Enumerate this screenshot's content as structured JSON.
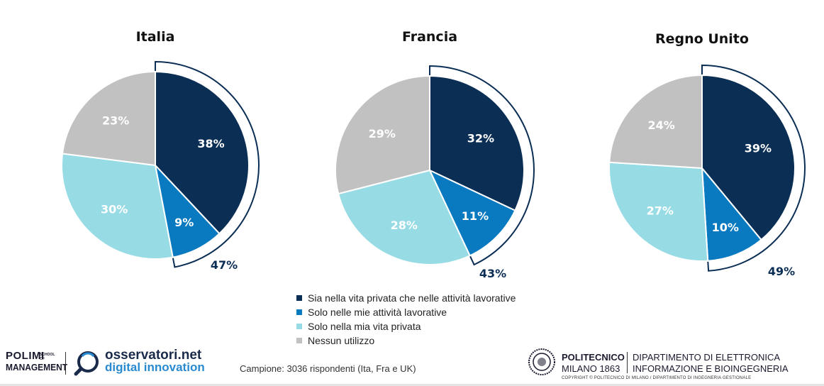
{
  "chart_data": [
    {
      "type": "pie",
      "title": "Italia",
      "slices": [
        {
          "label": "Sia nella vita privata che nelle attività lavorative",
          "value": 38,
          "text": "38%"
        },
        {
          "label": "Solo nelle mie attività lavorative",
          "value": 9,
          "text": "9%"
        },
        {
          "label": "Solo nella mia vita privata",
          "value": 30,
          "text": "30%"
        },
        {
          "label": "Nessun utilizzo",
          "value": 23,
          "text": "23%"
        }
      ],
      "callout": {
        "value": 47,
        "text": "47%"
      }
    },
    {
      "type": "pie",
      "title": "Francia",
      "slices": [
        {
          "label": "Sia nella vita privata che nelle attività lavorative",
          "value": 32,
          "text": "32%"
        },
        {
          "label": "Solo nelle mie attività lavorative",
          "value": 11,
          "text": "11%"
        },
        {
          "label": "Solo nella mia vita privata",
          "value": 28,
          "text": "28%"
        },
        {
          "label": "Nessun utilizzo",
          "value": 29,
          "text": "29%"
        }
      ],
      "callout": {
        "value": 43,
        "text": "43%"
      }
    },
    {
      "type": "pie",
      "title": "Regno Unito",
      "slices": [
        {
          "label": "Sia nella vita privata che nelle attività lavorative",
          "value": 39,
          "text": "39%"
        },
        {
          "label": "Solo nelle mie attività lavorative",
          "value": 10,
          "text": "10%"
        },
        {
          "label": "Solo nella mia vita privata",
          "value": 27,
          "text": "27%"
        },
        {
          "label": "Nessun utilizzo",
          "value": 24,
          "text": "24%"
        }
      ],
      "callout": {
        "value": 49,
        "text": "49%"
      }
    }
  ],
  "legend": {
    "placement": "bottom-center",
    "items": [
      {
        "label": "Sia nella vita privata che nelle attività lavorative",
        "color": "#0b2e55"
      },
      {
        "label": "Solo nelle mie attività lavorative",
        "color": "#0a7ac0"
      },
      {
        "label": "Solo nella mia vita privata",
        "color": "#97dbe4"
      },
      {
        "label": "Nessun utilizzo",
        "color": "#c1c1c1"
      }
    ]
  },
  "colors": {
    "slice_label_dark_bg": "#ffffff",
    "callout": "#0b2e55",
    "callout_border": "#0b2e55"
  },
  "footer": {
    "polimi_line1": "POLIMI",
    "polimi_line2": "MANAGEMENT",
    "polimi_school": "SCHOOL OF",
    "observatory_line1": "osservatori.net",
    "observatory_line2": "digital innovation",
    "sample": "Campione: 3036 rispondenti (Ita, Fra e UK)",
    "politecnico_line1": "POLITECNICO",
    "politecnico_line2": "MILANO 1863",
    "dept_line1": "DIPARTIMENTO DI ELETTRONICA",
    "dept_line2": "INFORMAZIONE E BIOINGEGNERIA",
    "copyright": "COPYRIGHT © POLITECNICO DI MILANO / DIPARTIMENTO DI INGEGNERIA GESTIONALE"
  }
}
